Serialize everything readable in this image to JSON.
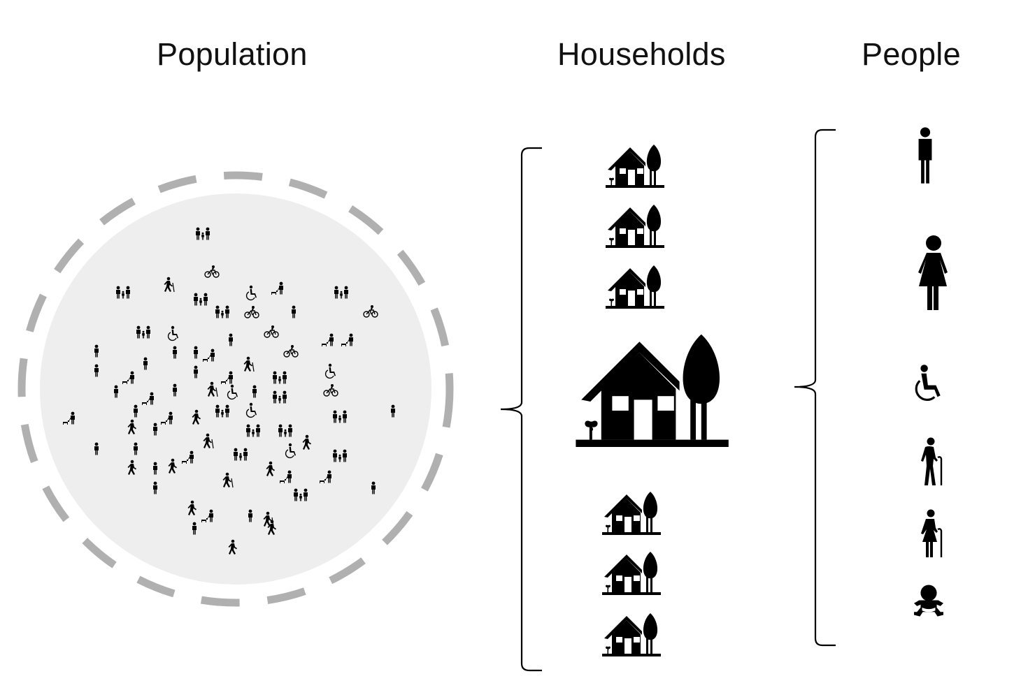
{
  "headings": {
    "population": "Population",
    "households": "Households",
    "people": "People"
  },
  "colors": {
    "icon": "#000000",
    "population_fill": "#eeeeee",
    "population_ring": "#b0b0b0"
  },
  "population_icons": [
    "family-icon",
    "bicycle-icon",
    "pedestrian-icon",
    "wheelchair-icon",
    "walking-elder-icon",
    "dog-walker-icon",
    "person-icon",
    "hiker-icon"
  ],
  "household_icons": [
    "house-icon",
    "house-icon",
    "house-icon",
    "house-icon",
    "house-icon",
    "house-icon",
    "house-icon"
  ],
  "people_icons": [
    "man-icon",
    "woman-icon",
    "wheelchair-user-icon",
    "elderly-man-icon",
    "elderly-woman-icon",
    "baby-icon"
  ]
}
